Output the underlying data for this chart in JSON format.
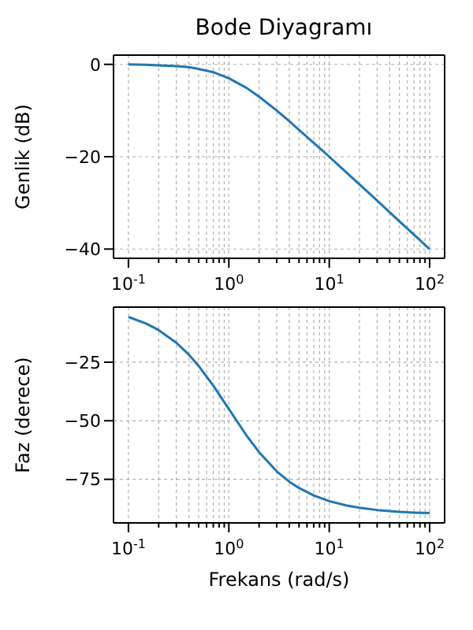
{
  "chart_data": [
    {
      "type": "line",
      "title": "Bode Diyagramı",
      "ylabel": "Genlik (dB)",
      "log": "x",
      "grid": true,
      "x": [
        0.1,
        0.15,
        0.2,
        0.3,
        0.4,
        0.5,
        0.7,
        1,
        1.5,
        2,
        3,
        4,
        5,
        7,
        10,
        15,
        20,
        30,
        50,
        70,
        100
      ],
      "series": [
        {
          "color": "#1f77b4",
          "values": [
            0,
            -0.1,
            -0.2,
            -0.4,
            -0.6,
            -1,
            -1.7,
            -3,
            -5.1,
            -7,
            -10,
            -12.3,
            -14.2,
            -17,
            -20,
            -23.5,
            -26,
            -29.5,
            -34,
            -36.9,
            -40
          ]
        }
      ],
      "xlim": [
        0.071,
        141
      ],
      "ylim": [
        -42,
        2
      ],
      "yticks": [
        -40,
        -20,
        0
      ],
      "xticks": [
        {
          "value": 0.1,
          "label": "10$^{-1}$"
        },
        {
          "value": 0.2,
          "label": null
        },
        {
          "value": 0.3,
          "label": null
        },
        {
          "value": 0.4,
          "label": null
        },
        {
          "value": 0.5,
          "label": null
        },
        {
          "value": 0.6,
          "label": null
        },
        {
          "value": 0.7,
          "label": null
        },
        {
          "value": 0.8,
          "label": null
        },
        {
          "value": 0.9,
          "label": null
        },
        {
          "value": 1,
          "label": "10$^{0}$"
        },
        {
          "value": 2,
          "label": null
        },
        {
          "value": 3,
          "label": null
        },
        {
          "value": 4,
          "label": null
        },
        {
          "value": 5,
          "label": null
        },
        {
          "value": 6,
          "label": null
        },
        {
          "value": 7,
          "label": null
        },
        {
          "value": 8,
          "label": null
        },
        {
          "value": 9,
          "label": null
        },
        {
          "value": 10,
          "label": "10$^{1}$"
        },
        {
          "value": 20,
          "label": null
        },
        {
          "value": 30,
          "label": null
        },
        {
          "value": 40,
          "label": null
        },
        {
          "value": 50,
          "label": null
        },
        {
          "value": 60,
          "label": null
        },
        {
          "value": 70,
          "label": null
        },
        {
          "value": 80,
          "label": null
        },
        {
          "value": 90,
          "label": null
        },
        {
          "value": 100,
          "label": "10$^{2}$"
        }
      ]
    },
    {
      "type": "line",
      "xlabel": "Frekans (rad/s)",
      "ylabel": "Faz (derece)",
      "log": "x",
      "grid": true,
      "x": [
        0.1,
        0.15,
        0.2,
        0.3,
        0.4,
        0.5,
        0.7,
        1,
        1.5,
        2,
        3,
        4,
        5,
        7,
        10,
        15,
        20,
        30,
        50,
        70,
        100
      ],
      "series": [
        {
          "color": "#1f77b4",
          "values": [
            -5.7,
            -8.5,
            -11.3,
            -16.7,
            -21.8,
            -26.6,
            -35,
            -45,
            -56.3,
            -63.4,
            -71.6,
            -76,
            -78.7,
            -81.9,
            -84.3,
            -86.2,
            -87.1,
            -88.1,
            -88.9,
            -89.2,
            -89.4
          ]
        }
      ],
      "xlim": [
        0.071,
        141
      ],
      "ylim": [
        -93.6,
        -1.5
      ],
      "yticks": [
        -75,
        -50,
        -25
      ],
      "xticks": [
        {
          "value": 0.1,
          "label": "10$^{-1}$"
        },
        {
          "value": 0.2,
          "label": null
        },
        {
          "value": 0.3,
          "label": null
        },
        {
          "value": 0.4,
          "label": null
        },
        {
          "value": 0.5,
          "label": null
        },
        {
          "value": 0.6,
          "label": null
        },
        {
          "value": 0.7,
          "label": null
        },
        {
          "value": 0.8,
          "label": null
        },
        {
          "value": 0.9,
          "label": null
        },
        {
          "value": 1,
          "label": "10$^{0}$"
        },
        {
          "value": 2,
          "label": null
        },
        {
          "value": 3,
          "label": null
        },
        {
          "value": 4,
          "label": null
        },
        {
          "value": 5,
          "label": null
        },
        {
          "value": 6,
          "label": null
        },
        {
          "value": 7,
          "label": null
        },
        {
          "value": 8,
          "label": null
        },
        {
          "value": 9,
          "label": null
        },
        {
          "value": 10,
          "label": "10$^{1}$"
        },
        {
          "value": 20,
          "label": null
        },
        {
          "value": 30,
          "label": null
        },
        {
          "value": 40,
          "label": null
        },
        {
          "value": 50,
          "label": null
        },
        {
          "value": 60,
          "label": null
        },
        {
          "value": 70,
          "label": null
        },
        {
          "value": 80,
          "label": null
        },
        {
          "value": 90,
          "label": null
        },
        {
          "value": 100,
          "label": "10$^{2}$"
        }
      ]
    }
  ]
}
